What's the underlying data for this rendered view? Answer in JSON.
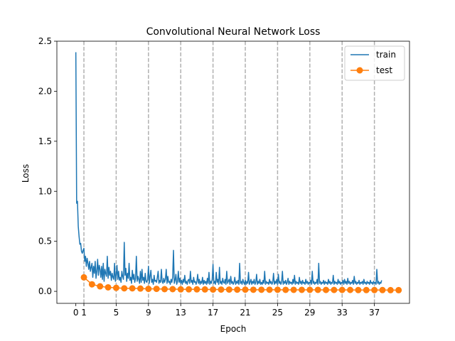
{
  "chart_data": {
    "type": "line",
    "title": "Convolutional Neural Network Loss",
    "xlabel": "Epoch",
    "ylabel": "Loss",
    "xlim": [
      -2.35,
      41.35
    ],
    "ylim": [
      -0.12,
      2.5
    ],
    "xticks": [
      0,
      1,
      5,
      9,
      13,
      17,
      21,
      25,
      29,
      33,
      37
    ],
    "yticks": [
      0.0,
      0.5,
      1.0,
      1.5,
      2.0,
      2.5
    ],
    "ytick_labels": [
      "0.0",
      "0.5",
      "1.0",
      "1.5",
      "2.0",
      "2.5"
    ],
    "vlines": [
      1,
      5,
      9,
      13,
      17,
      21,
      25,
      29,
      33,
      37
    ],
    "grid": false,
    "legend_position": "top-right",
    "series": [
      {
        "name": "train",
        "color": "#1f77b4",
        "marker": "none",
        "x_start": 0,
        "x_step": 0.1,
        "values": [
          2.39,
          0.88,
          0.9,
          0.65,
          0.55,
          0.47,
          0.48,
          0.4,
          0.38,
          0.41,
          0.43,
          0.3,
          0.35,
          0.25,
          0.33,
          0.28,
          0.22,
          0.3,
          0.2,
          0.24,
          0.28,
          0.14,
          0.25,
          0.18,
          0.3,
          0.13,
          0.2,
          0.32,
          0.16,
          0.26,
          0.22,
          0.14,
          0.25,
          0.12,
          0.28,
          0.1,
          0.22,
          0.18,
          0.15,
          0.35,
          0.13,
          0.24,
          0.16,
          0.2,
          0.11,
          0.18,
          0.14,
          0.12,
          0.28,
          0.1,
          0.16,
          0.26,
          0.12,
          0.2,
          0.11,
          0.14,
          0.09,
          0.2,
          0.15,
          0.12,
          0.49,
          0.16,
          0.23,
          0.1,
          0.18,
          0.13,
          0.28,
          0.11,
          0.14,
          0.08,
          0.21,
          0.12,
          0.17,
          0.09,
          0.13,
          0.35,
          0.1,
          0.15,
          0.12,
          0.08,
          0.2,
          0.09,
          0.22,
          0.11,
          0.14,
          0.08,
          0.18,
          0.1,
          0.09,
          0.12,
          0.25,
          0.08,
          0.15,
          0.21,
          0.09,
          0.12,
          0.07,
          0.16,
          0.1,
          0.11,
          0.09,
          0.14,
          0.2,
          0.08,
          0.11,
          0.09,
          0.22,
          0.1,
          0.08,
          0.13,
          0.09,
          0.12,
          0.22,
          0.08,
          0.15,
          0.09,
          0.1,
          0.07,
          0.12,
          0.09,
          0.14,
          0.41,
          0.08,
          0.11,
          0.17,
          0.07,
          0.1,
          0.2,
          0.09,
          0.13,
          0.08,
          0.11,
          0.07,
          0.12,
          0.09,
          0.16,
          0.08,
          0.1,
          0.07,
          0.11,
          0.12,
          0.08,
          0.2,
          0.09,
          0.11,
          0.07,
          0.14,
          0.09,
          0.1,
          0.07,
          0.1,
          0.17,
          0.08,
          0.12,
          0.07,
          0.1,
          0.08,
          0.14,
          0.07,
          0.11,
          0.08,
          0.1,
          0.07,
          0.13,
          0.08,
          0.19,
          0.07,
          0.1,
          0.08,
          0.12,
          0.27,
          0.08,
          0.1,
          0.07,
          0.19,
          0.09,
          0.12,
          0.07,
          0.24,
          0.08,
          0.1,
          0.07,
          0.13,
          0.09,
          0.08,
          0.12,
          0.07,
          0.2,
          0.08,
          0.1,
          0.12,
          0.07,
          0.15,
          0.08,
          0.1,
          0.07,
          0.09,
          0.14,
          0.07,
          0.1,
          0.08,
          0.11,
          0.07,
          0.28,
          0.08,
          0.1,
          0.07,
          0.12,
          0.09,
          0.07,
          0.11,
          0.07,
          0.1,
          0.08,
          0.19,
          0.07,
          0.09,
          0.12,
          0.07,
          0.1,
          0.08,
          0.12,
          0.07,
          0.09,
          0.17,
          0.07,
          0.1,
          0.08,
          0.12,
          0.07,
          0.09,
          0.07,
          0.11,
          0.08,
          0.2,
          0.07,
          0.1,
          0.08,
          0.09,
          0.07,
          0.12,
          0.08,
          0.1,
          0.07,
          0.09,
          0.18,
          0.07,
          0.1,
          0.08,
          0.12,
          0.07,
          0.17,
          0.08,
          0.1,
          0.07,
          0.09,
          0.2,
          0.07,
          0.1,
          0.08,
          0.11,
          0.07,
          0.09,
          0.13,
          0.07,
          0.1,
          0.08,
          0.09,
          0.07,
          0.12,
          0.08,
          0.16,
          0.07,
          0.1,
          0.08,
          0.09,
          0.07,
          0.14,
          0.08,
          0.1,
          0.07,
          0.11,
          0.08,
          0.09,
          0.07,
          0.12,
          0.08,
          0.1,
          0.07,
          0.09,
          0.08,
          0.11,
          0.07,
          0.2,
          0.08,
          0.1,
          0.07,
          0.09,
          0.08,
          0.12,
          0.07,
          0.28,
          0.08,
          0.1,
          0.07,
          0.09,
          0.08,
          0.11,
          0.07,
          0.1,
          0.08,
          0.09,
          0.07,
          0.12,
          0.08,
          0.1,
          0.07,
          0.09,
          0.08,
          0.16,
          0.07,
          0.1,
          0.08,
          0.09,
          0.07,
          0.12,
          0.08,
          0.1,
          0.07,
          0.09,
          0.08,
          0.11,
          0.07,
          0.12,
          0.08,
          0.1,
          0.07,
          0.13,
          0.08,
          0.1,
          0.07,
          0.09,
          0.08,
          0.11,
          0.07,
          0.15,
          0.08,
          0.1,
          0.07,
          0.09,
          0.08,
          0.11,
          0.07,
          0.09,
          0.08,
          0.1,
          0.07,
          0.12,
          0.08,
          0.09,
          0.07,
          0.1,
          0.08,
          0.09,
          0.07,
          0.11,
          0.08,
          0.09,
          0.07,
          0.1,
          0.08,
          0.09,
          0.07,
          0.22,
          0.08,
          0.1,
          0.07,
          0.09,
          0.08,
          0.11
        ]
      },
      {
        "name": "test",
        "color": "#ff7f0e",
        "marker": "circle",
        "x": [
          1,
          2,
          3,
          4,
          5,
          6,
          7,
          8,
          9,
          10,
          11,
          12,
          13,
          14,
          15,
          16,
          17,
          18,
          19,
          20,
          21,
          22,
          23,
          24,
          25,
          26,
          27,
          28,
          29,
          30,
          31,
          32,
          33,
          34,
          35,
          36,
          37,
          38,
          39,
          40
        ],
        "values": [
          0.14,
          0.07,
          0.05,
          0.04,
          0.035,
          0.03,
          0.03,
          0.028,
          0.025,
          0.025,
          0.022,
          0.022,
          0.02,
          0.02,
          0.02,
          0.019,
          0.018,
          0.018,
          0.018,
          0.017,
          0.017,
          0.016,
          0.016,
          0.016,
          0.016,
          0.015,
          0.015,
          0.015,
          0.015,
          0.015,
          0.014,
          0.014,
          0.014,
          0.014,
          0.013,
          0.013,
          0.013,
          0.013,
          0.012,
          0.012
        ]
      }
    ]
  }
}
